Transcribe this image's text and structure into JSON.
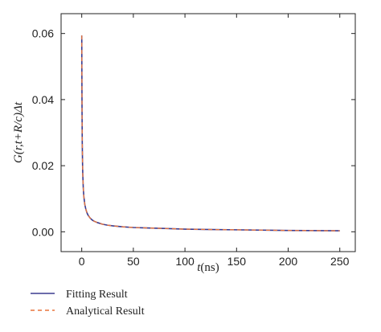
{
  "chart_data": {
    "type": "line",
    "title": "",
    "xlabel": {
      "italic": "t",
      "rest": "(ns)"
    },
    "ylabel": "G(r,t+R/c)Δt",
    "xlim": [
      -20,
      265
    ],
    "ylim": [
      -0.006,
      0.066
    ],
    "x_ticks": [
      0,
      50,
      100,
      150,
      200,
      250
    ],
    "x_tick_labels": [
      "0",
      "50",
      "100",
      "150",
      "200",
      "250"
    ],
    "y_ticks": [
      0.0,
      0.02,
      0.04,
      0.06
    ],
    "y_tick_labels": [
      "0.00",
      "0.02",
      "0.04",
      "0.06"
    ],
    "grid": false,
    "legend_position": "bottom-left, below plot",
    "series": [
      {
        "name": "Fitting Result",
        "color": "#3b3b8f",
        "dash": "solid",
        "x": [
          0.02,
          0.05,
          0.1,
          0.2,
          0.3,
          0.5,
          0.8,
          1,
          1.5,
          2,
          3,
          4,
          5,
          6,
          8,
          10,
          12,
          15,
          20,
          25,
          30,
          40,
          50,
          60,
          80,
          100,
          120,
          150,
          200,
          250
        ],
        "y": [
          0.0594,
          0.0575,
          0.052,
          0.043,
          0.036,
          0.027,
          0.0205,
          0.0175,
          0.0132,
          0.0108,
          0.0082,
          0.0068,
          0.0058,
          0.0051,
          0.0042,
          0.0036,
          0.0032,
          0.0028,
          0.0023,
          0.002,
          0.0018,
          0.0015,
          0.0013,
          0.0012,
          0.001,
          0.0008,
          0.0007,
          0.0006,
          0.0004,
          0.0003
        ]
      },
      {
        "name": "Analytical Result",
        "color": "#e8743b",
        "dash": "dashed",
        "x": [
          0.02,
          0.05,
          0.1,
          0.2,
          0.3,
          0.5,
          0.8,
          1,
          1.5,
          2,
          3,
          4,
          5,
          6,
          8,
          10,
          12,
          15,
          20,
          25,
          30,
          40,
          50,
          60,
          80,
          100,
          120,
          150,
          200,
          250
        ],
        "y": [
          0.0594,
          0.0575,
          0.052,
          0.043,
          0.036,
          0.027,
          0.0205,
          0.0175,
          0.0132,
          0.0108,
          0.0082,
          0.0068,
          0.0058,
          0.0051,
          0.0042,
          0.0036,
          0.0032,
          0.0028,
          0.0023,
          0.002,
          0.0018,
          0.0015,
          0.0013,
          0.0012,
          0.001,
          0.0008,
          0.0007,
          0.0006,
          0.0004,
          0.0003
        ]
      }
    ]
  }
}
